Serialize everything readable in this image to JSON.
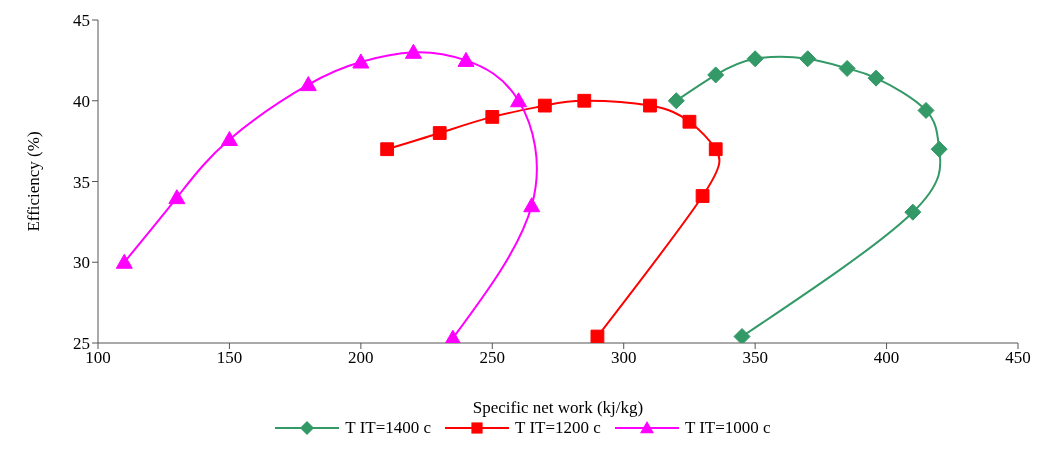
{
  "chart_data": {
    "type": "line",
    "xlabel": "Specific net work (kj/kg)",
    "ylabel": "Efficiency (%)",
    "xlim": [
      100,
      450
    ],
    "xticks": [
      100,
      150,
      200,
      250,
      300,
      350,
      400,
      450
    ],
    "ylim": [
      25,
      45
    ],
    "yticks": [
      25,
      30,
      35,
      40,
      45
    ],
    "grid": false,
    "legend": "bottom",
    "line_style": "solid",
    "series": [
      {
        "name": "T IT=1400 c",
        "color": "#339966",
        "marker": "diamond",
        "x": [
          320,
          335,
          350,
          370,
          385,
          396,
          415,
          420,
          410,
          345
        ],
        "values": [
          40,
          41.6,
          42.6,
          42.6,
          42,
          41.4,
          39.4,
          37,
          33.1,
          25.4
        ]
      },
      {
        "name": "T IT=1200 c",
        "color": "#ff0000",
        "marker": "square",
        "x": [
          210,
          230,
          250,
          270,
          285,
          310,
          325,
          335,
          330,
          290
        ],
        "values": [
          37,
          38,
          39,
          39.7,
          40,
          39.7,
          38.7,
          37,
          34.1,
          25.4
        ]
      },
      {
        "name": "T IT=1000 c",
        "color": "#ff00ff",
        "marker": "triangle",
        "x": [
          110,
          130,
          150,
          180,
          200,
          220,
          240,
          260,
          265,
          235
        ],
        "values": [
          30,
          34,
          37.6,
          41,
          42.4,
          43,
          42.5,
          40,
          33.5,
          25.3
        ]
      }
    ]
  }
}
